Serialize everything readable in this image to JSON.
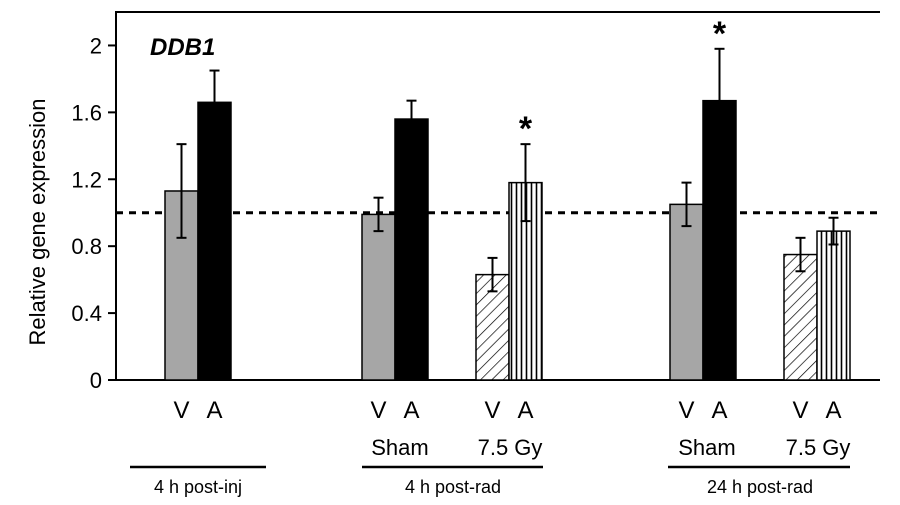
{
  "chart_data": {
    "type": "bar",
    "title": "DDB1",
    "ylabel": "Relative gene expression",
    "ylim": [
      0,
      2.2
    ],
    "yticks": [
      "0",
      "0.4",
      "0.8",
      "1.2",
      "1.6",
      "2"
    ],
    "reference_line": 1.0,
    "bars": [
      {
        "letter": "V",
        "value": 1.13,
        "error": 0.28,
        "pattern": "gray",
        "star": false
      },
      {
        "letter": "A",
        "value": 1.66,
        "error": 0.19,
        "pattern": "black",
        "star": false
      },
      {
        "letter": "V",
        "value": 0.99,
        "error": 0.1,
        "pattern": "gray",
        "star": false
      },
      {
        "letter": "A",
        "value": 1.56,
        "error": 0.11,
        "pattern": "black",
        "star": false
      },
      {
        "letter": "V",
        "value": 0.63,
        "error": 0.1,
        "pattern": "diagonal",
        "star": false
      },
      {
        "letter": "A",
        "value": 1.18,
        "error": 0.23,
        "pattern": "vertical",
        "star": true
      },
      {
        "letter": "V",
        "value": 1.05,
        "error": 0.13,
        "pattern": "gray",
        "star": false
      },
      {
        "letter": "A",
        "value": 1.67,
        "error": 0.31,
        "pattern": "black",
        "star": true
      },
      {
        "letter": "V",
        "value": 0.75,
        "error": 0.1,
        "pattern": "diagonal",
        "star": false
      },
      {
        "letter": "A",
        "value": 0.89,
        "error": 0.08,
        "pattern": "vertical",
        "star": false
      }
    ],
    "star_symbol": "*",
    "treatment_labels": [
      "Sham",
      "7.5 Gy",
      "Sham",
      "7.5 Gy"
    ],
    "group_labels": [
      "4 h post-inj",
      "4 h post-rad",
      "24 h post-rad"
    ],
    "colors": {
      "gray": "#a6a6a6",
      "black": "#000000",
      "pattern_fill": "#ffffff",
      "pattern_line": "#000000"
    }
  }
}
